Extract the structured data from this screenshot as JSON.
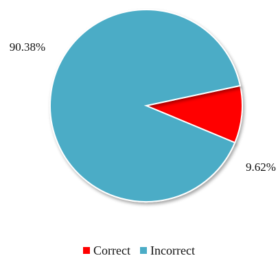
{
  "chart_data": {
    "type": "pie",
    "slices": [
      {
        "name": "Correct",
        "value": 9.62,
        "label": "9.62%",
        "color": "#ff0000"
      },
      {
        "name": "Incorrect",
        "value": 90.38,
        "label": "90.38%",
        "color": "#4bacc6"
      }
    ],
    "legend": {
      "placement": "bottom",
      "entries": [
        "Correct",
        "Incorrect"
      ]
    }
  }
}
